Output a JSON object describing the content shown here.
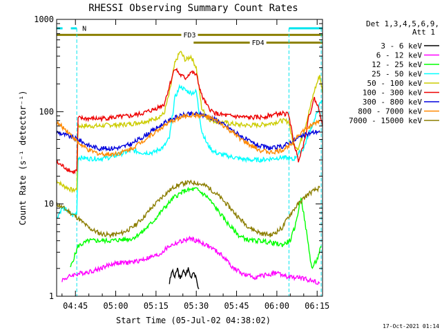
{
  "chart_data": {
    "type": "line",
    "title": "RHESSI Observing Summary Count Rates",
    "xlabel": "Start Time (05-Jul-02 04:38:02)",
    "ylabel": "Count Rate (s⁻¹ detector⁻¹)",
    "x_unit": "minutes after 04:38:02",
    "xlim": [
      0,
      99
    ],
    "ylim": [
      1,
      1000
    ],
    "yscale": "log",
    "xticks": [
      {
        "value": 7,
        "label": "04:45"
      },
      {
        "value": 22,
        "label": "05:00"
      },
      {
        "value": 37,
        "label": "05:15"
      },
      {
        "value": 52,
        "label": "05:30"
      },
      {
        "value": 67,
        "label": "05:45"
      },
      {
        "value": 82,
        "label": "06:00"
      },
      {
        "value": 97,
        "label": "06:15"
      }
    ],
    "yticks": [
      {
        "value": 1,
        "label": "1"
      },
      {
        "value": 10,
        "label": "10"
      },
      {
        "value": 100,
        "label": "100"
      },
      {
        "value": 1000,
        "label": "1000"
      }
    ],
    "legend_header": [
      "Det 1,3,4,5,6,9,",
      "Att 1"
    ],
    "legend_position": "right",
    "bands": [
      {
        "label": "N",
        "type": "night",
        "color": "#00e5ee",
        "y": 800,
        "start": 0,
        "end": 7.5
      },
      {
        "label": "",
        "type": "night",
        "color": "#00e5ee",
        "y": 800,
        "start": 86.5,
        "end": 99
      },
      {
        "label": "FD3",
        "type": "flare",
        "color": "#8b8000",
        "y": 680,
        "start": 0,
        "end": 99
      },
      {
        "label": "FD4",
        "type": "flare",
        "color": "#8b8000",
        "y": 560,
        "start": 51,
        "end": 99
      }
    ],
    "vlines": [
      7.5,
      86.5,
      98.5
    ],
    "series": [
      {
        "name": "3 - 6 keV",
        "color": "#000000",
        "x": [
          42,
          43,
          44,
          45,
          46,
          47,
          48,
          49,
          50,
          51,
          52,
          53
        ],
        "values": [
          1.4,
          1.9,
          1.6,
          2.0,
          1.5,
          1.9,
          1.7,
          2.0,
          1.6,
          1.9,
          1.5,
          1.2
        ]
      },
      {
        "name": "6 - 12 keV",
        "color": "#ff00ff",
        "x": [
          2,
          6,
          10,
          14,
          18,
          22,
          26,
          30,
          34,
          38,
          42,
          46,
          50,
          54,
          58,
          62,
          66,
          70,
          74,
          78,
          82,
          86,
          90,
          94,
          98
        ],
        "values": [
          1.5,
          1.7,
          1.8,
          1.9,
          2.1,
          2.3,
          2.3,
          2.4,
          2.6,
          2.8,
          3.5,
          3.9,
          4.2,
          3.8,
          3.3,
          2.7,
          2.0,
          1.7,
          1.6,
          1.7,
          1.8,
          1.6,
          1.6,
          1.5,
          1.4
        ]
      },
      {
        "name": "12 - 25 keV",
        "color": "#00ff00",
        "x": [
          5,
          8,
          12,
          16,
          20,
          24,
          28,
          32,
          36,
          40,
          44,
          48,
          52,
          56,
          60,
          64,
          68,
          72,
          76,
          80,
          84,
          87,
          89,
          91,
          93,
          95,
          97,
          98.5
        ],
        "values": [
          2.0,
          3.5,
          4.0,
          4.0,
          4.0,
          4.1,
          4.2,
          5.0,
          6.5,
          9.0,
          12.0,
          14.0,
          14.5,
          12.0,
          8.5,
          6.0,
          4.5,
          4.0,
          4.0,
          3.8,
          3.6,
          4.0,
          6.0,
          12.0,
          5.0,
          2.0,
          2.5,
          3.5
        ]
      },
      {
        "name": "25 - 50 keV",
        "color": "#00ffff",
        "x": [
          0,
          2,
          4,
          6,
          7.5,
          8,
          12,
          16,
          20,
          24,
          28,
          32,
          36,
          40,
          42,
          44,
          46,
          48,
          50,
          52,
          54,
          56,
          58,
          60,
          64,
          68,
          72,
          76,
          80,
          84,
          86.5,
          88,
          90,
          92,
          94,
          96,
          98,
          99
        ],
        "values": [
          7.0,
          9.0,
          8.5,
          7.5,
          8.0,
          32.0,
          31.0,
          31.0,
          32.0,
          35.0,
          38.0,
          36.0,
          36.0,
          42.0,
          52.0,
          140.0,
          190.0,
          170.0,
          160.0,
          165.0,
          62.0,
          45.0,
          38.0,
          35.0,
          33.0,
          31.0,
          30.0,
          30.0,
          31.0,
          32.0,
          31.0,
          30.0,
          35.0,
          40.0,
          60.0,
          80.0,
          120.0,
          130.0
        ]
      },
      {
        "name": "50 - 100 keV",
        "color": "#cccc00",
        "x": [
          0,
          2,
          4,
          6,
          7.5,
          8,
          12,
          16,
          20,
          24,
          28,
          32,
          36,
          40,
          42,
          44,
          46,
          48,
          50,
          52,
          54,
          56,
          58,
          60,
          64,
          68,
          72,
          76,
          80,
          84,
          86.5,
          88,
          90,
          92,
          94,
          96,
          98,
          99
        ],
        "values": [
          18.0,
          16.0,
          15.0,
          14.0,
          14.5,
          70.0,
          70.0,
          70.0,
          72.0,
          72.0,
          74.0,
          78.0,
          82.0,
          95.0,
          160.0,
          330.0,
          450.0,
          360.0,
          400.0,
          300.0,
          110.0,
          85.0,
          80.0,
          78.0,
          75.0,
          72.0,
          71.0,
          72.0,
          75.0,
          80.0,
          78.0,
          45.0,
          40.0,
          60.0,
          100.0,
          170.0,
          250.0,
          160.0
        ]
      },
      {
        "name": "100 - 300 keV",
        "color": "#ee0000",
        "x": [
          0,
          2,
          4,
          6,
          7.5,
          8,
          12,
          16,
          20,
          24,
          28,
          32,
          36,
          40,
          42,
          44,
          46,
          48,
          50,
          52,
          54,
          56,
          58,
          60,
          64,
          68,
          72,
          76,
          80,
          84,
          86.5,
          88,
          90,
          92,
          94,
          96,
          98,
          99
        ],
        "values": [
          28.0,
          26.0,
          24.0,
          22.0,
          23.0,
          85.0,
          84.0,
          84.0,
          86.0,
          88.0,
          90.0,
          96.0,
          105.0,
          120.0,
          190.0,
          300.0,
          250.0,
          230.0,
          270.0,
          250.0,
          150.0,
          115.0,
          100.0,
          94.0,
          90.0,
          88.0,
          86.0,
          87.0,
          92.0,
          96.0,
          93.0,
          50.0,
          30.0,
          45.0,
          90.0,
          140.0,
          100.0,
          70.0
        ]
      },
      {
        "name": "300 - 800 keV",
        "color": "#0000dd",
        "x": [
          0,
          4,
          8,
          12,
          16,
          20,
          24,
          28,
          32,
          36,
          40,
          44,
          48,
          52,
          56,
          60,
          64,
          68,
          72,
          76,
          80,
          84,
          86,
          88,
          90,
          92,
          94,
          96,
          98
        ],
        "values": [
          60.0,
          55.0,
          50.0,
          43.0,
          40.0,
          40.0,
          41.0,
          45.0,
          53.0,
          63.0,
          75.0,
          86.0,
          93.0,
          95.0,
          90.0,
          80.0,
          67.0,
          56.0,
          47.0,
          42.0,
          40.0,
          42.0,
          45.0,
          48.0,
          52.0,
          55.0,
          58.0,
          60.0,
          62.0
        ]
      },
      {
        "name": "800 - 7000 keV",
        "color": "#ff8800",
        "x": [
          0,
          4,
          8,
          12,
          16,
          20,
          24,
          28,
          32,
          36,
          40,
          44,
          48,
          52,
          56,
          60,
          64,
          68,
          72,
          76,
          80,
          84,
          86,
          88,
          90,
          92,
          94,
          96,
          98
        ],
        "values": [
          76.0,
          62.0,
          46.0,
          38.0,
          35.0,
          34.5,
          36.0,
          40.0,
          48.0,
          58.0,
          70.0,
          82.0,
          90.0,
          92.0,
          88.0,
          78.0,
          64.0,
          52.0,
          43.0,
          38.0,
          36.0,
          38.0,
          42.0,
          48.0,
          56.0,
          62.0,
          68.0,
          74.0,
          80.0
        ]
      },
      {
        "name": "7000 - 15000 keV",
        "color": "#8b7d00",
        "x": [
          0,
          4,
          8,
          12,
          16,
          20,
          24,
          28,
          32,
          36,
          40,
          44,
          48,
          52,
          56,
          60,
          64,
          68,
          72,
          76,
          80,
          84,
          86,
          88,
          90,
          92,
          94,
          96,
          98
        ],
        "values": [
          10.0,
          8.5,
          7.0,
          5.5,
          4.8,
          4.6,
          4.8,
          5.5,
          7.0,
          9.5,
          12.5,
          15.5,
          17.0,
          17.0,
          15.5,
          12.5,
          9.5,
          7.0,
          5.5,
          4.8,
          4.6,
          5.5,
          7.0,
          8.5,
          10.0,
          11.5,
          13.0,
          14.0,
          15.0
        ]
      }
    ]
  },
  "footer": {
    "timestamp": "17-Oct-2021 01:14"
  }
}
